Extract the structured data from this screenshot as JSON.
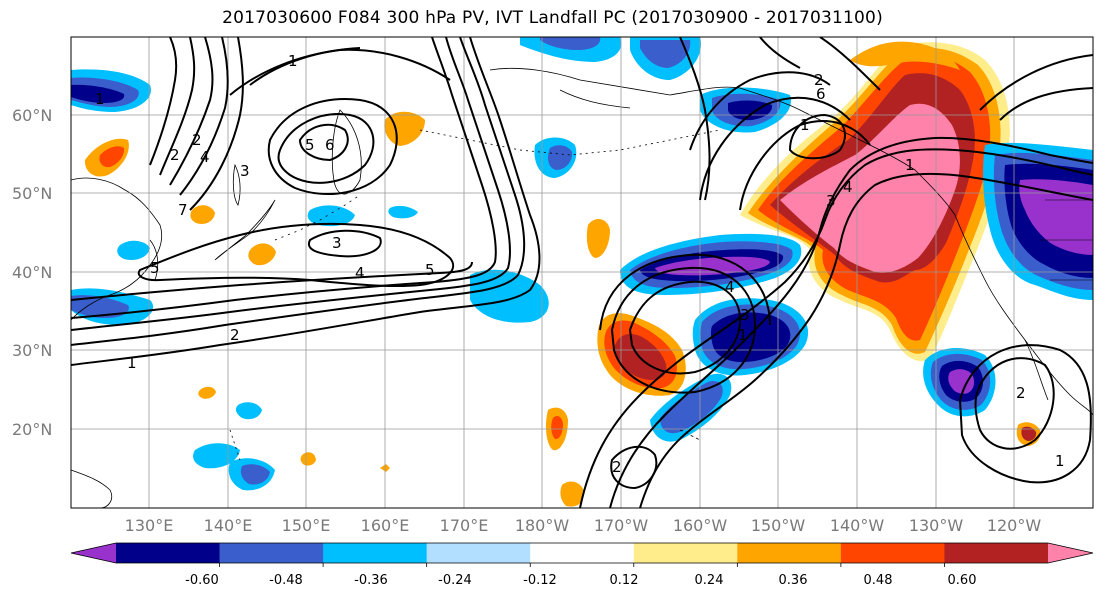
{
  "title": "2017030600 F084 300 hPa PV, IVT Landfall PC (2017030900 - 2017031100)",
  "lat_labels": [
    "60°N",
    "50°N",
    "40°N",
    "30°N",
    "20°N"
  ],
  "lon_labels": [
    "130°E",
    "140°E",
    "150°E",
    "160°E",
    "170°E",
    "180°W",
    "170°W",
    "160°W",
    "150°W",
    "140°W",
    "130°W",
    "120°W"
  ],
  "colorbar": {
    "colors": [
      "#9932cc",
      "#00008b",
      "#3a5fcd",
      "#00bfff",
      "#b2dfff",
      "#ffffff",
      "#ffec8b",
      "#ffa500",
      "#ff4500",
      "#b22222",
      "#ff82ab"
    ],
    "tick_labels": [
      "-0.60",
      "-0.48",
      "-0.36",
      "-0.24",
      "-0.12",
      "0.12",
      "0.24",
      "0.36",
      "0.48",
      "0.60"
    ]
  },
  "contour_labels": [
    "1",
    "2",
    "2",
    "3",
    "4",
    "5",
    "5",
    "6",
    "1",
    "7",
    "1",
    "2",
    "3",
    "4",
    "5",
    "1",
    "2",
    "3",
    "4",
    "3",
    "4",
    "1",
    "2",
    "6",
    "1",
    "2",
    "1"
  ]
}
